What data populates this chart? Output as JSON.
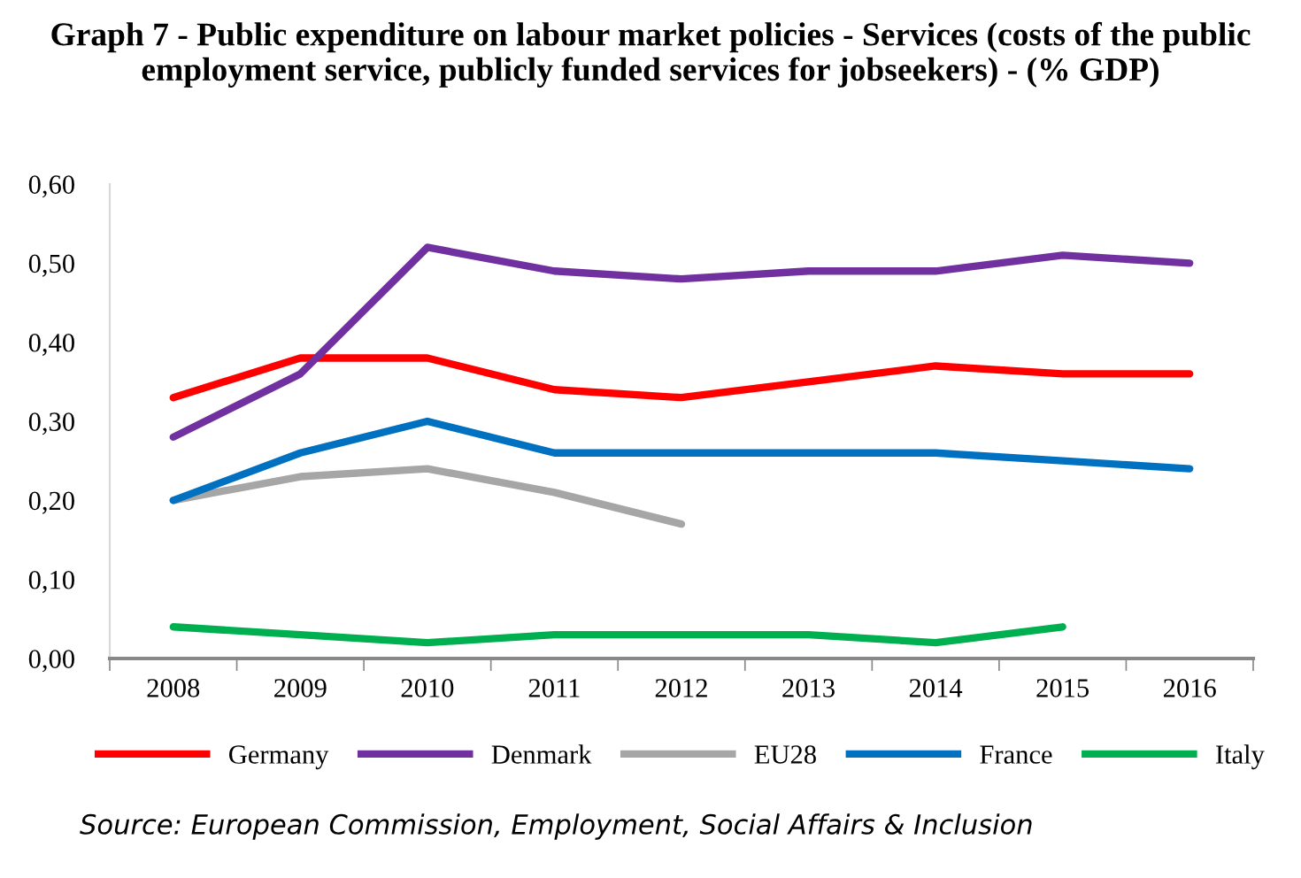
{
  "chart_data": {
    "type": "line",
    "title": "Graph 7 - Public expenditure on labour market policies - Services (costs of the public employment service, publicly funded services for jobseekers) - (% GDP)",
    "categories": [
      "2008",
      "2009",
      "2010",
      "2011",
      "2012",
      "2013",
      "2014",
      "2015",
      "2016"
    ],
    "series": [
      {
        "name": "Germany",
        "color": "#ff0000",
        "values": [
          0.33,
          0.38,
          0.38,
          0.34,
          0.33,
          0.35,
          0.37,
          0.36,
          0.36
        ]
      },
      {
        "name": "Denmark",
        "color": "#7030a0",
        "values": [
          0.28,
          0.36,
          0.52,
          0.49,
          0.48,
          0.49,
          0.49,
          0.51,
          0.5
        ]
      },
      {
        "name": "EU28",
        "color": "#a6a6a6",
        "values": [
          0.2,
          0.23,
          0.24,
          0.21,
          0.17,
          null,
          null,
          null,
          null
        ]
      },
      {
        "name": "France",
        "color": "#0070c0",
        "values": [
          0.2,
          0.26,
          0.3,
          0.26,
          0.26,
          0.26,
          0.26,
          0.25,
          0.24
        ]
      },
      {
        "name": "Italy",
        "color": "#00b050",
        "values": [
          0.04,
          0.03,
          0.02,
          0.03,
          0.03,
          0.03,
          0.02,
          0.04,
          null
        ]
      }
    ],
    "ylim": [
      0,
      0.6
    ],
    "yticks": [
      {
        "value": 0,
        "label": "0,00"
      },
      {
        "value": 0.1,
        "label": "0,10"
      },
      {
        "value": 0.2,
        "label": "0,20"
      },
      {
        "value": 0.3,
        "label": "0,30"
      },
      {
        "value": 0.4,
        "label": "0,40"
      },
      {
        "value": 0.5,
        "label": "0,50"
      },
      {
        "value": 0.6,
        "label": "0,60"
      }
    ],
    "grid": false,
    "legend": "bottom",
    "marker": "none",
    "line_style": "solid",
    "annotations": [
      "Source: European Commission, Employment, Social Affairs & Inclusion"
    ]
  }
}
